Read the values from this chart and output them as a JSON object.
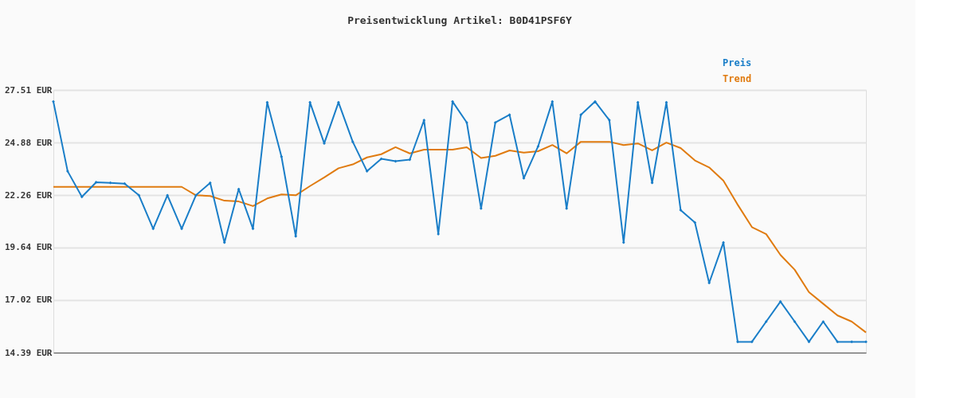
{
  "chart_data": {
    "type": "line",
    "title": "Preisentwicklung Artikel: B0D41PSF6Y",
    "categories": [
      null,
      null,
      null,
      null,
      null,
      null,
      null,
      null,
      null,
      null,
      null,
      null,
      null,
      null,
      null,
      null,
      null,
      null,
      null,
      null,
      null,
      null,
      null,
      null,
      null,
      null,
      null,
      null,
      null,
      null,
      null,
      null,
      null,
      null,
      null,
      null,
      null,
      null,
      null,
      null,
      null,
      null,
      null,
      null,
      null,
      null,
      null,
      null,
      null,
      null,
      null,
      null,
      null,
      null,
      null,
      null,
      null,
      null
    ],
    "series": [
      {
        "name": "Preis",
        "color": "#1a7ec8",
        "marker": "diamond",
        "values": [
          26.93,
          23.45,
          22.17,
          22.9,
          22.87,
          22.83,
          22.25,
          20.58,
          22.25,
          20.58,
          22.25,
          22.87,
          19.89,
          22.56,
          20.58,
          26.89,
          24.18,
          20.2,
          26.89,
          24.84,
          26.89,
          24.92,
          23.45,
          24.07,
          23.95,
          24.03,
          26.0,
          20.31,
          26.93,
          25.88,
          21.59,
          25.88,
          26.27,
          23.1,
          24.69,
          26.93,
          21.59,
          26.27,
          26.93,
          26.0,
          19.89,
          26.89,
          22.87,
          26.89,
          21.51,
          20.89,
          17.87,
          19.89,
          14.93,
          14.93,
          15.94,
          16.94,
          15.94,
          14.93,
          15.94,
          14.93,
          14.93,
          14.93
        ]
      },
      {
        "name": "Trend",
        "color": "#e07b10",
        "marker": "none",
        "values": [
          22.67,
          22.67,
          22.67,
          22.67,
          22.67,
          22.67,
          22.67,
          22.67,
          22.67,
          22.67,
          22.25,
          22.21,
          21.98,
          21.94,
          21.71,
          22.09,
          22.29,
          22.25,
          22.71,
          23.14,
          23.6,
          23.79,
          24.14,
          24.3,
          24.65,
          24.34,
          24.53,
          24.53,
          24.53,
          24.65,
          24.11,
          24.22,
          24.49,
          24.38,
          24.45,
          24.76,
          24.34,
          24.92,
          24.92,
          24.92,
          24.76,
          24.84,
          24.49,
          24.88,
          24.61,
          23.99,
          23.64,
          22.98,
          21.78,
          20.66,
          20.31,
          19.27,
          18.53,
          17.41,
          16.83,
          16.25,
          15.94,
          15.4
        ]
      }
    ],
    "ylim": [
      14.39,
      27.51
    ],
    "yticks": [
      {
        "value": 14.39,
        "label": "14.39 EUR"
      },
      {
        "value": 17.02,
        "label": "17.02 EUR"
      },
      {
        "value": 19.64,
        "label": "19.64 EUR"
      },
      {
        "value": 22.26,
        "label": "22.26 EUR"
      },
      {
        "value": 24.88,
        "label": "24.88 EUR"
      },
      {
        "value": 27.51,
        "label": "27.51 EUR"
      }
    ],
    "grid": "y",
    "legend": "top right",
    "tick_labels": "y",
    "line_style": "solid"
  }
}
